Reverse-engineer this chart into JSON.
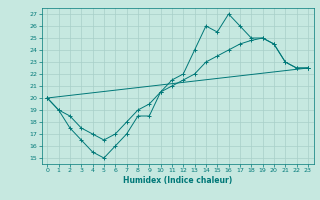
{
  "xlabel": "Humidex (Indice chaleur)",
  "xlim": [
    -0.5,
    23.5
  ],
  "ylim": [
    14.5,
    27.5
  ],
  "xticks": [
    0,
    1,
    2,
    3,
    4,
    5,
    6,
    7,
    8,
    9,
    10,
    11,
    12,
    13,
    14,
    15,
    16,
    17,
    18,
    19,
    20,
    21,
    22,
    23
  ],
  "yticks": [
    15,
    16,
    17,
    18,
    19,
    20,
    21,
    22,
    23,
    24,
    25,
    26,
    27
  ],
  "bg_color": "#c6e8e0",
  "grid_color": "#a8cfc8",
  "line_color": "#007878",
  "line1_x": [
    0,
    1,
    2,
    3,
    4,
    5,
    6,
    7,
    8,
    9,
    10,
    11,
    12,
    13,
    14,
    15,
    16,
    17,
    18,
    19,
    20,
    21,
    22,
    23
  ],
  "line1_y": [
    20,
    19,
    17.5,
    16.5,
    15.5,
    15,
    16,
    17,
    18.5,
    18.5,
    20.5,
    21.5,
    22,
    24,
    26,
    25.5,
    27,
    26,
    25,
    25,
    24.5,
    23,
    22.5,
    22.5
  ],
  "line2_x": [
    0,
    1,
    2,
    3,
    4,
    5,
    6,
    7,
    8,
    9,
    10,
    11,
    12,
    13,
    14,
    15,
    16,
    17,
    18,
    19,
    20,
    21,
    22,
    23
  ],
  "line2_y": [
    20,
    19,
    18.5,
    17.5,
    17,
    16.5,
    17,
    18,
    19,
    19.5,
    20.5,
    21,
    21.5,
    22,
    23,
    23.5,
    24,
    24.5,
    24.8,
    25,
    24.5,
    23,
    22.5,
    22.5
  ],
  "line3_x": [
    0,
    23
  ],
  "line3_y": [
    20,
    22.5
  ]
}
